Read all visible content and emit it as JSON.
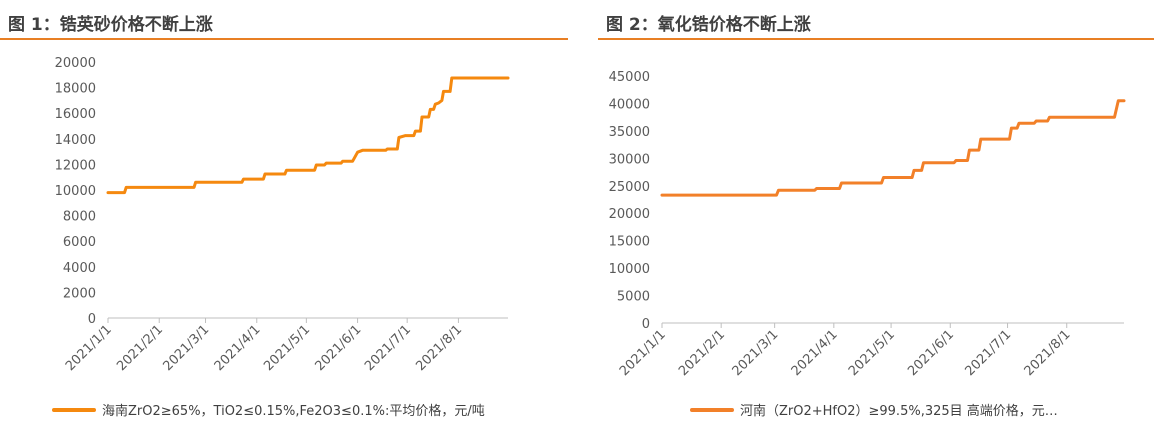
{
  "panels": {
    "left": {
      "title": "图 1：锆英砂价格不断上涨",
      "legend": "海南ZrO2≥65%，TiO2≤0.15%,Fe2O3≤0.1%:平均价格，元/吨"
    },
    "right": {
      "title": "图 2：氧化锆价格不断上涨",
      "legend": "河南（ZrO2+HfO2）≥99.5%,325目 高端价格，元…"
    }
  },
  "colors": {
    "accent": "#e87f24",
    "series_left": "#f5890f",
    "series_right": "#f28029",
    "axis": "#bfbfbf"
  },
  "chart_data": [
    {
      "type": "line",
      "title": "图 1：锆英砂价格不断上涨",
      "xlabel": "",
      "ylabel": "",
      "x_ticks": [
        "2021/1/1",
        "2021/2/1",
        "2021/3/1",
        "2021/4/1",
        "2021/5/1",
        "2021/6/1",
        "2021/7/1",
        "2021/8/1"
      ],
      "y_ticks": [
        0,
        2000,
        4000,
        6000,
        8000,
        10000,
        12000,
        14000,
        16000,
        18000,
        20000
      ],
      "ylim": [
        0,
        20000
      ],
      "xlim": [
        "2021/1/1",
        "2021/8/31"
      ],
      "grid": false,
      "legend_position": "bottom",
      "series": [
        {
          "name": "海南ZrO2≥65%，TiO2≤0.15%,Fe2O3≤0.1%:平均价格，元/吨",
          "points": [
            [
              "2021/1/1",
              9800
            ],
            [
              "2021/1/11",
              9800
            ],
            [
              "2021/1/12",
              10200
            ],
            [
              "2021/2/22",
              10200
            ],
            [
              "2021/2/23",
              10600
            ],
            [
              "2021/3/23",
              10600
            ],
            [
              "2021/3/24",
              10850
            ],
            [
              "2021/4/5",
              10850
            ],
            [
              "2021/4/6",
              11250
            ],
            [
              "2021/4/18",
              11250
            ],
            [
              "2021/4/19",
              11550
            ],
            [
              "2021/5/6",
              11550
            ],
            [
              "2021/5/7",
              11950
            ],
            [
              "2021/5/12",
              11950
            ],
            [
              "2021/5/13",
              12100
            ],
            [
              "2021/5/22",
              12100
            ],
            [
              "2021/5/23",
              12250
            ],
            [
              "2021/5/29",
              12250
            ],
            [
              "2021/6/1",
              12950
            ],
            [
              "2021/6/4",
              13100
            ],
            [
              "2021/6/18",
              13100
            ],
            [
              "2021/6/19",
              13200
            ],
            [
              "2021/6/25",
              13200
            ],
            [
              "2021/6/26",
              14100
            ],
            [
              "2021/6/30",
              14250
            ],
            [
              "2021/7/5",
              14250
            ],
            [
              "2021/7/6",
              14600
            ],
            [
              "2021/7/9",
              14600
            ],
            [
              "2021/7/10",
              15700
            ],
            [
              "2021/7/14",
              15700
            ],
            [
              "2021/7/15",
              16300
            ],
            [
              "2021/7/17",
              16300
            ],
            [
              "2021/7/18",
              16700
            ],
            [
              "2021/7/20",
              16800
            ],
            [
              "2021/7/22",
              17000
            ],
            [
              "2021/7/23",
              17700
            ],
            [
              "2021/7/27",
              17700
            ],
            [
              "2021/7/28",
              18750
            ],
            [
              "2021/8/31",
              18750
            ]
          ]
        }
      ]
    },
    {
      "type": "line",
      "title": "图 2：氧化锆价格不断上涨",
      "xlabel": "",
      "ylabel": "",
      "x_ticks": [
        "2021/1/1",
        "2021/2/1",
        "2021/3/1",
        "2021/4/1",
        "2021/5/1",
        "2021/6/1",
        "2021/7/1",
        "2021/8/1"
      ],
      "y_ticks": [
        0,
        5000,
        10000,
        15000,
        20000,
        25000,
        30000,
        35000,
        40000,
        45000
      ],
      "ylim": [
        0,
        45000
      ],
      "xlim": [
        "2021/1/1",
        "2021/8/31"
      ],
      "grid": false,
      "legend_position": "bottom",
      "series": [
        {
          "name": "河南（ZrO2+HfO2）≥99.5%,325目 高端价格，元…",
          "points": [
            [
              "2021/1/1",
              23300
            ],
            [
              "2021/3/2",
              23300
            ],
            [
              "2021/3/3",
              24200
            ],
            [
              "2021/3/22",
              24200
            ],
            [
              "2021/3/23",
              24500
            ],
            [
              "2021/4/4",
              24500
            ],
            [
              "2021/4/5",
              25500
            ],
            [
              "2021/4/26",
              25500
            ],
            [
              "2021/4/27",
              26500
            ],
            [
              "2021/5/12",
              26500
            ],
            [
              "2021/5/13",
              27800
            ],
            [
              "2021/5/17",
              27800
            ],
            [
              "2021/5/18",
              29200
            ],
            [
              "2021/6/3",
              29200
            ],
            [
              "2021/6/4",
              29600
            ],
            [
              "2021/6/10",
              29600
            ],
            [
              "2021/6/11",
              31500
            ],
            [
              "2021/6/16",
              31500
            ],
            [
              "2021/6/17",
              33500
            ],
            [
              "2021/7/2",
              33500
            ],
            [
              "2021/7/3",
              35500
            ],
            [
              "2021/7/6",
              35500
            ],
            [
              "2021/7/7",
              36400
            ],
            [
              "2021/7/15",
              36400
            ],
            [
              "2021/7/16",
              36800
            ],
            [
              "2021/7/22",
              36800
            ],
            [
              "2021/7/23",
              37500
            ],
            [
              "2021/8/26",
              37500
            ],
            [
              "2021/8/28",
              40500
            ],
            [
              "2021/8/31",
              40500
            ]
          ]
        }
      ]
    }
  ]
}
